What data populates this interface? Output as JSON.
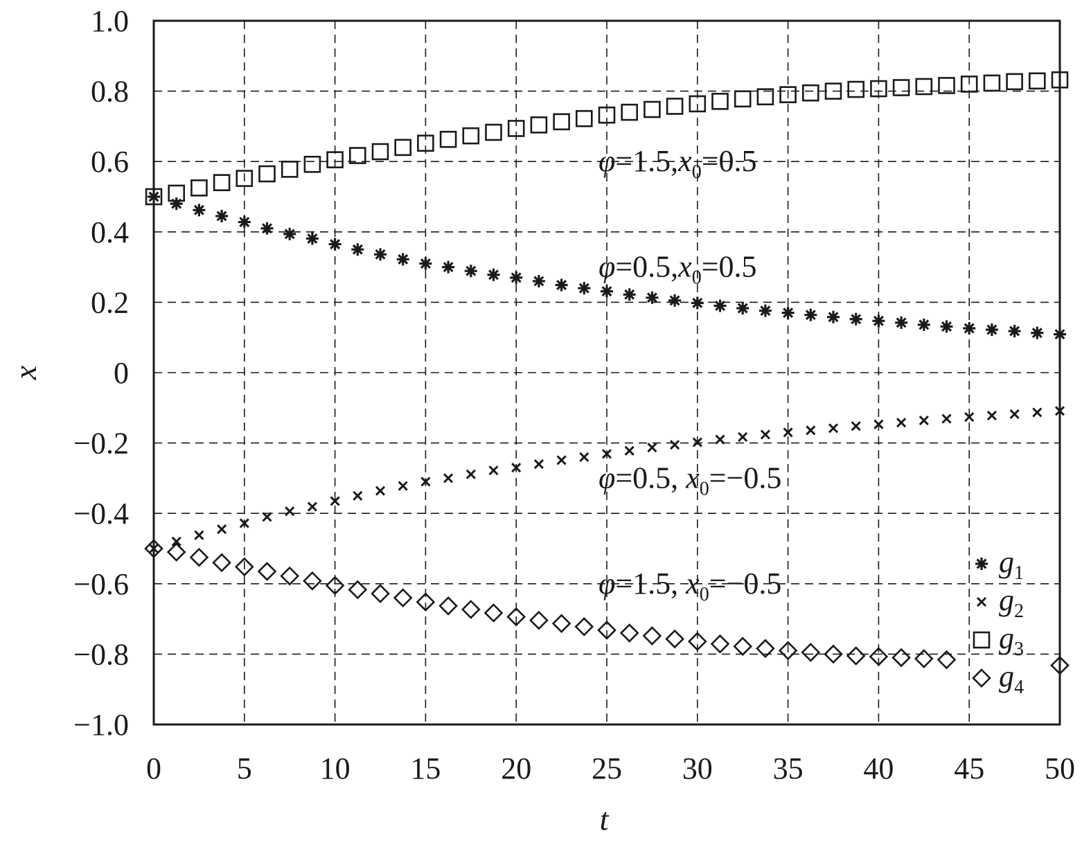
{
  "chart_data": {
    "type": "scatter",
    "title": "",
    "xlabel": "t",
    "ylabel": "x",
    "xlim": [
      0,
      50
    ],
    "ylim": [
      -1.0,
      1.0
    ],
    "grid": true,
    "legend_position": "bottom-right",
    "x_ticks": [
      "0",
      "5",
      "10",
      "15",
      "20",
      "25",
      "30",
      "35",
      "40",
      "45",
      "50"
    ],
    "y_ticks": [
      "1.0",
      "0.8",
      "0.6",
      "0.4",
      "0.2",
      "0",
      "−0.2",
      "−0.4",
      "−0.6",
      "−0.8",
      "−1.0"
    ],
    "x": [
      0,
      1.25,
      2.5,
      3.75,
      5,
      6.25,
      7.5,
      8.75,
      10,
      11.25,
      12.5,
      13.75,
      15,
      16.25,
      17.5,
      18.75,
      20,
      21.25,
      22.5,
      23.75,
      25,
      26.25,
      27.5,
      28.75,
      30,
      31.25,
      32.5,
      33.75,
      35,
      36.25,
      37.5,
      38.75,
      40,
      41.25,
      42.5,
      43.75,
      45,
      46.25,
      47.5,
      48.75,
      50
    ],
    "series": [
      {
        "name": "g1",
        "marker": "asterisk",
        "values": [
          0.5,
          0.48,
          0.462,
          0.445,
          0.428,
          0.41,
          0.394,
          0.381,
          0.365,
          0.35,
          0.336,
          0.322,
          0.31,
          0.3,
          0.289,
          0.278,
          0.27,
          0.26,
          0.249,
          0.24,
          0.231,
          0.222,
          0.213,
          0.205,
          0.198,
          0.19,
          0.183,
          0.176,
          0.17,
          0.164,
          0.158,
          0.152,
          0.147,
          0.142,
          0.136,
          0.131,
          0.126,
          0.122,
          0.118,
          0.113,
          0.109
        ]
      },
      {
        "name": "g2",
        "marker": "cross",
        "values": [
          -0.5,
          -0.48,
          -0.462,
          -0.445,
          -0.428,
          -0.41,
          -0.394,
          -0.381,
          -0.365,
          -0.35,
          -0.336,
          -0.322,
          -0.31,
          -0.3,
          -0.289,
          -0.278,
          -0.27,
          -0.26,
          -0.249,
          -0.24,
          -0.231,
          -0.222,
          -0.213,
          -0.205,
          -0.198,
          -0.19,
          -0.183,
          -0.176,
          -0.17,
          -0.164,
          -0.158,
          -0.152,
          -0.147,
          -0.142,
          -0.136,
          -0.131,
          -0.126,
          -0.122,
          -0.118,
          -0.113,
          -0.109
        ]
      },
      {
        "name": "g3",
        "marker": "square",
        "values": [
          0.5,
          0.51,
          0.525,
          0.54,
          0.552,
          0.565,
          0.578,
          0.592,
          0.605,
          0.617,
          0.628,
          0.64,
          0.652,
          0.663,
          0.673,
          0.683,
          0.694,
          0.704,
          0.713,
          0.722,
          0.732,
          0.74,
          0.748,
          0.757,
          0.764,
          0.771,
          0.778,
          0.784,
          0.79,
          0.795,
          0.8,
          0.805,
          0.807,
          0.81,
          0.813,
          0.816,
          0.82,
          0.823,
          0.827,
          0.829,
          0.832
        ]
      },
      {
        "name": "g4",
        "marker": "diamond",
        "values": [
          -0.5,
          -0.51,
          -0.525,
          -0.54,
          -0.552,
          -0.565,
          -0.578,
          -0.592,
          -0.605,
          -0.617,
          -0.628,
          -0.64,
          -0.652,
          -0.663,
          -0.673,
          -0.683,
          -0.694,
          -0.704,
          -0.713,
          -0.722,
          -0.732,
          -0.74,
          -0.748,
          -0.757,
          -0.764,
          -0.771,
          -0.778,
          -0.784,
          -0.79,
          -0.795,
          -0.8,
          -0.805,
          -0.807,
          -0.81,
          -0.813,
          -0.816,
          null,
          null,
          null,
          null,
          -0.832
        ]
      }
    ],
    "legend": [
      {
        "symbol": "g",
        "sub": "1",
        "marker": "asterisk"
      },
      {
        "symbol": "g",
        "sub": "2",
        "marker": "cross"
      },
      {
        "symbol": "g",
        "sub": "3",
        "marker": "square"
      },
      {
        "symbol": "g",
        "sub": "4",
        "marker": "diamond"
      }
    ],
    "annotations": [
      {
        "phi_sym": "φ",
        "phi_val": "=1.5,",
        "x_sym": "x",
        "x_sub": "0",
        "x_val": "=0.5",
        "at": [
          25,
          0.6
        ]
      },
      {
        "phi_sym": "φ",
        "phi_val": "=0.5,",
        "x_sym": "x",
        "x_sub": "0",
        "x_val": "=0.5",
        "at": [
          25,
          0.3
        ]
      },
      {
        "phi_sym": "φ",
        "phi_val": "=0.5, ",
        "x_sym": "x",
        "x_sub": "0",
        "x_val": "=−0.5",
        "at": [
          25,
          -0.3
        ]
      },
      {
        "phi_sym": "φ",
        "phi_val": "=1.5, ",
        "x_sym": "x",
        "x_sub": "0",
        "x_val": "=−0.5",
        "at": [
          25,
          -0.6
        ]
      }
    ]
  }
}
